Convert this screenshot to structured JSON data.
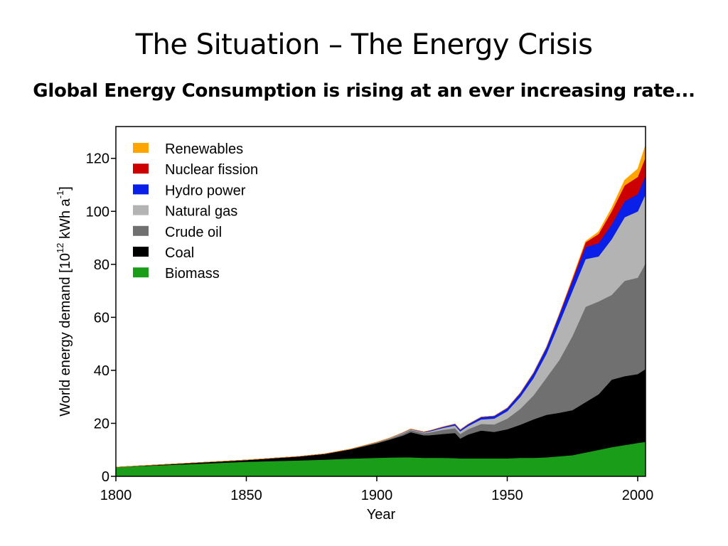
{
  "slide": {
    "title": "The Situation – The Energy Crisis",
    "subtitle": "Global Energy Consumption is rising at an ever increasing rate..."
  },
  "chart_data": {
    "type": "area",
    "stacked": true,
    "xlabel": "Year",
    "ylabel_parts": [
      "World energy demand [10",
      "12",
      " kWh a",
      "-1",
      "]"
    ],
    "xlim": [
      1800,
      2003
    ],
    "ylim": [
      0,
      132
    ],
    "xticks": [
      1800,
      1850,
      1900,
      1950,
      2000
    ],
    "yticks": [
      0,
      20,
      40,
      60,
      80,
      100,
      120
    ],
    "legend_position": "top-left",
    "grid": false,
    "x": [
      1800,
      1850,
      1870,
      1880,
      1890,
      1900,
      1905,
      1910,
      1913,
      1918,
      1920,
      1925,
      1930,
      1932,
      1935,
      1940,
      1945,
      1950,
      1955,
      1960,
      1965,
      1970,
      1975,
      1980,
      1985,
      1990,
      1995,
      2000,
      2003
    ],
    "series": [
      {
        "name": "Biomass",
        "color": "#1a9e1a",
        "values": [
          3.5,
          5.5,
          6.0,
          6.3,
          6.7,
          7.0,
          7.1,
          7.2,
          7.2,
          7.0,
          7.0,
          7.0,
          6.9,
          6.8,
          6.8,
          6.8,
          6.8,
          6.8,
          7.0,
          7.0,
          7.2,
          7.6,
          8.0,
          9.0,
          10.0,
          11.0,
          11.8,
          12.6,
          13.0
        ]
      },
      {
        "name": "Coal",
        "color": "#000000",
        "values": [
          0.0,
          0.7,
          1.5,
          2.2,
          3.5,
          5.5,
          6.8,
          8.2,
          9.5,
          8.5,
          8.5,
          9.0,
          9.5,
          7.5,
          9.0,
          10.5,
          10.0,
          11.0,
          12.5,
          14.5,
          16.0,
          16.4,
          17.0,
          19.0,
          21.0,
          25.5,
          26.0,
          26.0,
          27.5
        ]
      },
      {
        "name": "Crude oil",
        "color": "#707070",
        "values": [
          0.0,
          0.0,
          0.0,
          0.0,
          0.1,
          0.3,
          0.4,
          0.7,
          0.8,
          0.8,
          1.0,
          1.5,
          1.8,
          1.7,
          2.0,
          2.5,
          2.8,
          4.0,
          6.0,
          9.0,
          14.0,
          20.0,
          28.0,
          36.0,
          35.0,
          32.0,
          36.0,
          36.4,
          40.0
        ]
      },
      {
        "name": "Natural gas",
        "color": "#b3b3b3",
        "values": [
          0.0,
          0.0,
          0.0,
          0.0,
          0.0,
          0.1,
          0.2,
          0.3,
          0.3,
          0.3,
          0.4,
          0.7,
          1.0,
          1.0,
          1.2,
          1.7,
          2.2,
          2.8,
          4.5,
          6.5,
          9.0,
          14.0,
          17.0,
          18.0,
          17.0,
          21.0,
          24.0,
          25.0,
          26.0
        ]
      },
      {
        "name": "Hydro power",
        "color": "#0a1fe8",
        "values": [
          0.0,
          0.0,
          0.0,
          0.0,
          0.0,
          0.0,
          0.0,
          0.1,
          0.1,
          0.2,
          0.3,
          0.4,
          0.6,
          0.6,
          0.7,
          0.9,
          1.0,
          1.2,
          1.5,
          2.0,
          2.5,
          3.2,
          3.8,
          4.5,
          5.0,
          5.5,
          6.0,
          6.5,
          7.0
        ]
      },
      {
        "name": "Nuclear fission",
        "color": "#cc0000",
        "values": [
          0.0,
          0.0,
          0.0,
          0.0,
          0.0,
          0.0,
          0.0,
          0.0,
          0.0,
          0.0,
          0.0,
          0.0,
          0.0,
          0.0,
          0.0,
          0.0,
          0.0,
          0.0,
          0.0,
          0.0,
          0.0,
          0.2,
          0.8,
          1.8,
          3.5,
          5.0,
          6.0,
          6.5,
          7.0
        ]
      },
      {
        "name": "Renewables",
        "color": "#ffa500",
        "values": [
          0.0,
          0.0,
          0.0,
          0.0,
          0.0,
          0.0,
          0.0,
          0.0,
          0.0,
          0.0,
          0.0,
          0.0,
          0.0,
          0.0,
          0.0,
          0.0,
          0.0,
          0.0,
          0.0,
          0.0,
          0.0,
          0.0,
          0.2,
          0.4,
          0.8,
          1.2,
          2.0,
          3.0,
          4.5
        ]
      }
    ],
    "legend_order": [
      "Renewables",
      "Nuclear fission",
      "Hydro power",
      "Natural gas",
      "Crude oil",
      "Coal",
      "Biomass"
    ]
  }
}
